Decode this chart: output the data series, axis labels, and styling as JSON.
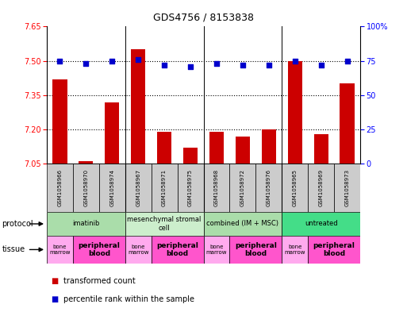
{
  "title": "GDS4756 / 8153838",
  "samples": [
    "GSM1058966",
    "GSM1058970",
    "GSM1058974",
    "GSM1058967",
    "GSM1058971",
    "GSM1058975",
    "GSM1058968",
    "GSM1058972",
    "GSM1058976",
    "GSM1058965",
    "GSM1058969",
    "GSM1058973"
  ],
  "transformed_count": [
    7.42,
    7.06,
    7.32,
    7.55,
    7.19,
    7.12,
    7.19,
    7.17,
    7.2,
    7.5,
    7.18,
    7.4
  ],
  "percentile_rank": [
    75,
    73,
    75,
    76,
    72,
    71,
    73,
    72,
    72,
    75,
    72,
    75
  ],
  "ylim_left": [
    7.05,
    7.65
  ],
  "ylim_right": [
    0,
    100
  ],
  "yticks_left": [
    7.05,
    7.2,
    7.35,
    7.5,
    7.65
  ],
  "yticks_right": [
    0,
    25,
    50,
    75,
    100
  ],
  "ytick_labels_right": [
    "0",
    "25",
    "50",
    "75",
    "100%"
  ],
  "hlines": [
    7.2,
    7.35,
    7.5
  ],
  "bar_color": "#cc0000",
  "dot_color": "#0000cc",
  "bar_width": 0.55,
  "protocols": [
    {
      "label": "imatinib",
      "start": 0,
      "end": 3,
      "color": "#aaddaa"
    },
    {
      "label": "mesenchymal stromal\ncell",
      "start": 3,
      "end": 6,
      "color": "#cceecc"
    },
    {
      "label": "combined (IM + MSC)",
      "start": 6,
      "end": 9,
      "color": "#aaddaa"
    },
    {
      "label": "untreated",
      "start": 9,
      "end": 12,
      "color": "#44dd88"
    }
  ],
  "tissues": [
    {
      "label": "bone\nmarrow",
      "start": 0,
      "end": 1,
      "color": "#ffaaee"
    },
    {
      "label": "peripheral\nblood",
      "start": 1,
      "end": 3,
      "color": "#ff55cc"
    },
    {
      "label": "bone\nmarrow",
      "start": 3,
      "end": 4,
      "color": "#ffaaee"
    },
    {
      "label": "peripheral\nblood",
      "start": 4,
      "end": 6,
      "color": "#ff55cc"
    },
    {
      "label": "bone\nmarrow",
      "start": 6,
      "end": 7,
      "color": "#ffaaee"
    },
    {
      "label": "peripheral\nblood",
      "start": 7,
      "end": 9,
      "color": "#ff55cc"
    },
    {
      "label": "bone\nmarrow",
      "start": 9,
      "end": 10,
      "color": "#ffaaee"
    },
    {
      "label": "peripheral\nblood",
      "start": 10,
      "end": 12,
      "color": "#ff55cc"
    }
  ],
  "legend_red": "transformed count",
  "legend_blue": "percentile rank within the sample",
  "protocol_label": "protocol",
  "tissue_label": "tissue",
  "sample_box_color": "#cccccc",
  "group_separators": [
    2.5,
    5.5,
    8.5
  ]
}
